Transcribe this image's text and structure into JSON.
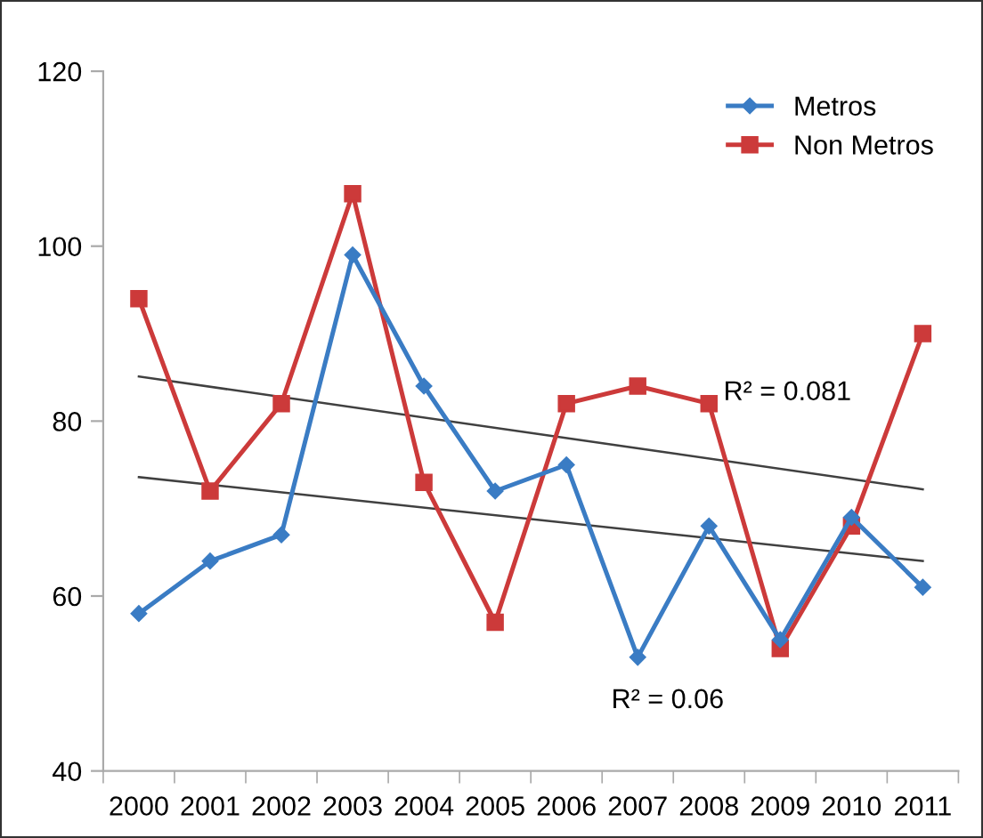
{
  "chart_data": {
    "type": "line",
    "categories": [
      "2000",
      "2001",
      "2002",
      "2003",
      "2004",
      "2005",
      "2006",
      "2007",
      "2008",
      "2009",
      "2010",
      "2011"
    ],
    "series": [
      {
        "name": "Metros",
        "color": "#3a7cc4",
        "marker": "diamond",
        "values": [
          58,
          64,
          67,
          99,
          84,
          72,
          75,
          53,
          68,
          55,
          69,
          61
        ]
      },
      {
        "name": "Non Metros",
        "color": "#cc3a3a",
        "marker": "square",
        "values": [
          94,
          72,
          82,
          106,
          73,
          57,
          82,
          84,
          82,
          54,
          68,
          90
        ]
      },
      {
        "color": "#404040",
        "marker": "none",
        "values": [
          85.1,
          null,
          null,
          null,
          null,
          null,
          null,
          null,
          null,
          null,
          null,
          72.2
        ]
      },
      {
        "color": "#404040",
        "marker": "none",
        "values": [
          73.6,
          null,
          null,
          null,
          null,
          null,
          null,
          null,
          null,
          null,
          null,
          64.0
        ]
      }
    ],
    "annotations": [
      "R² = 0.081",
      "R² = 0.06"
    ],
    "ylim": [
      40,
      120
    ],
    "yticks": [
      40,
      60,
      80,
      100,
      120
    ],
    "grid": false,
    "legend": "top right"
  }
}
